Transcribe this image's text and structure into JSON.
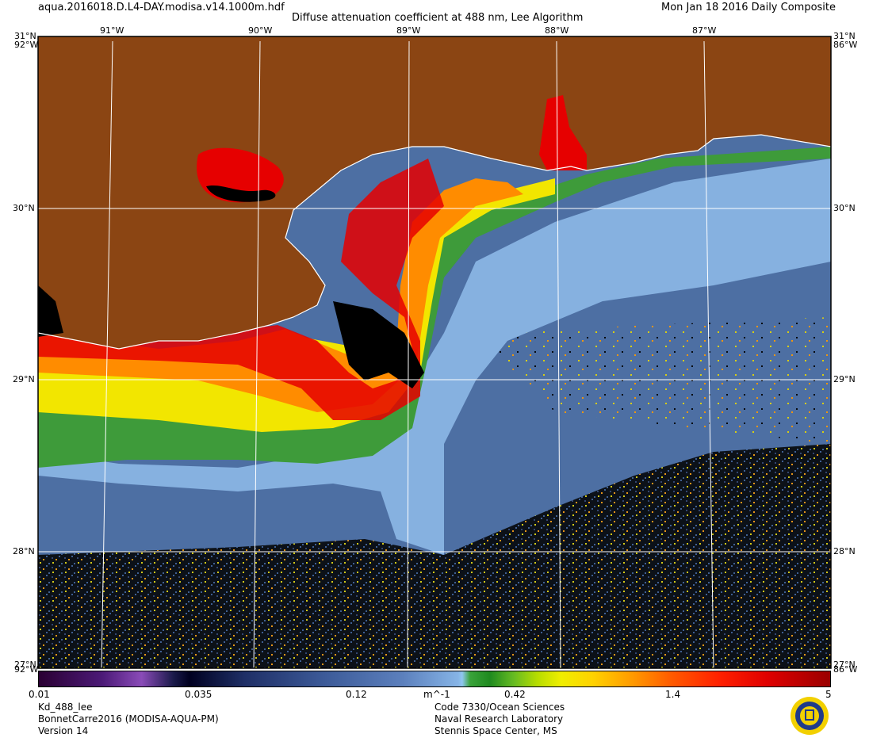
{
  "header": {
    "filename": "aqua.2016018.D.L4-DAY.modisa.v14.1000m.hdf",
    "title": "Diffuse attenuation coefficient at 488 nm, Lee Algorithm",
    "date": "Mon Jan 18 2016 Daily Composite"
  },
  "map": {
    "lon_labels": [
      "91°W",
      "90°W",
      "89°W",
      "88°W",
      "87°W"
    ],
    "lat_labels": [
      "30°N",
      "29°N",
      "28°N"
    ],
    "corner_lat_top": "31°N",
    "corner_lon_left": "92°W",
    "corner_lon_right": "86°W",
    "corner_lat_bottom": "27°N",
    "colors": {
      "land": "#8B4513",
      "graticule": "#ffffff",
      "coastline": "#ffffff",
      "open_water": "#4d6fa3",
      "mid_water": "#86b1e0",
      "green_water": "#3e9b3a",
      "yellow_water": "#f2e600",
      "orange_water": "#ff8c00",
      "red_water": "#e60000",
      "no_data": "#000000"
    }
  },
  "colorbar": {
    "tick_labels": [
      "0.01",
      "0.035",
      "0.12",
      "0.42",
      "1.4",
      "5"
    ],
    "unit": "m^-1"
  },
  "footer": {
    "left_lines": [
      "Kd_488_lee",
      "BonnetCarre2016 (MODISA-AQUA-PM)",
      "Version 14"
    ],
    "right_lines": [
      "Code 7330/Ocean Sciences",
      "Naval Research Laboratory",
      "Stennis Space Center, MS"
    ]
  }
}
